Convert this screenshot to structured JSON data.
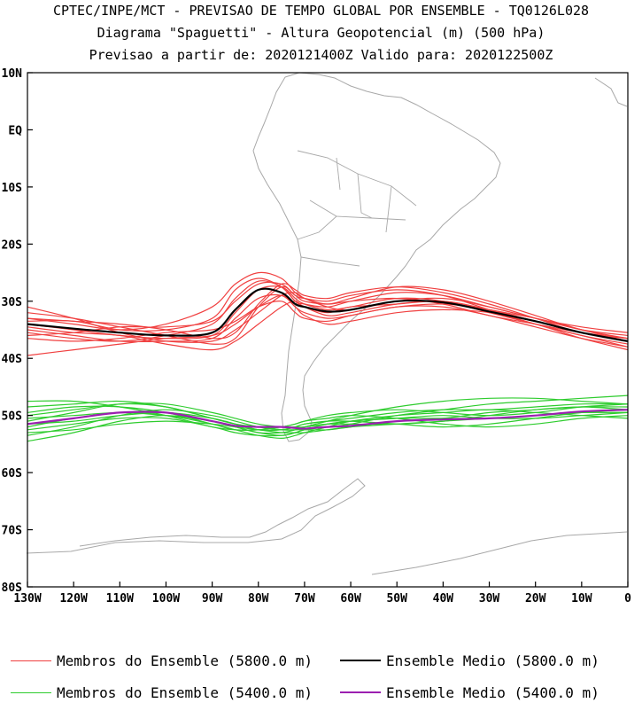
{
  "title": {
    "line1": "CPTEC/INPE/MCT - PREVISAO DE TEMPO GLOBAL POR ENSEMBLE - TQ0126L028",
    "line2": "Diagrama \"Spaguetti\" - Altura Geopotencial (m) (500 hPa)",
    "line3": "Previsao a partir de: 2020121400Z  Valido para: 2020122500Z"
  },
  "legend": [
    {
      "label": "Membros do Ensemble (5800.0 m)",
      "color": "#f04040",
      "weight": "thin"
    },
    {
      "label": "Ensemble Medio (5800.0 m)",
      "color": "#000000",
      "weight": "thick"
    },
    {
      "label": "Membros do Ensemble (5400.0 m)",
      "color": "#2ecc2e",
      "weight": "thin"
    },
    {
      "label": "Ensemble Medio (5400.0 m)",
      "color": "#9b1fb0",
      "weight": "thick"
    }
  ],
  "chart_data": {
    "type": "line",
    "xlim": [
      -130,
      0
    ],
    "ylim": [
      -80,
      10
    ],
    "x_ticks": [
      -130,
      -120,
      -110,
      -100,
      -90,
      -80,
      -70,
      -60,
      -50,
      -40,
      -30,
      -20,
      -10,
      0
    ],
    "x_tick_labels": [
      "130W",
      "120W",
      "110W",
      "100W",
      "90W",
      "80W",
      "70W",
      "60W",
      "50W",
      "40W",
      "30W",
      "20W",
      "10W",
      "0"
    ],
    "y_ticks": [
      10,
      0,
      -10,
      -20,
      -30,
      -40,
      -50,
      -60,
      -70,
      -80
    ],
    "y_tick_labels": [
      "10N",
      "EQ",
      "10S",
      "20S",
      "30S",
      "40S",
      "50S",
      "60S",
      "70S",
      "80S"
    ],
    "grid": false,
    "map_background": "South America coastline and country borders (gray)",
    "colors": {
      "map": "#a8a8a8",
      "members_5800": "#f04040",
      "mean_5800": "#000000",
      "members_5400": "#2ecc2e",
      "mean_5400": "#9b1fb0"
    },
    "x": [
      -130,
      -120,
      -110,
      -100,
      -90,
      -85,
      -80,
      -75,
      -72,
      -70,
      -65,
      -60,
      -50,
      -40,
      -30,
      -20,
      -10,
      0
    ],
    "series": [
      {
        "name": "Ensemble Medio (5800.0 m)",
        "kind": "mean",
        "color": "#000000",
        "values": [
          -34.0,
          -34.8,
          -35.5,
          -36.0,
          -35.5,
          -31.5,
          -28.0,
          -28.5,
          -30.5,
          -31.0,
          -31.8,
          -31.5,
          -30.0,
          -30.2,
          -31.8,
          -33.5,
          -35.5,
          -37.0
        ]
      },
      {
        "name": "Ensemble Medio (5400.0 m)",
        "kind": "mean",
        "color": "#9b1fb0",
        "values": [
          -51.5,
          -50.5,
          -49.5,
          -49.5,
          -51.0,
          -51.8,
          -52.0,
          -52.0,
          -52.2,
          -52.3,
          -52.0,
          -51.8,
          -51.0,
          -50.7,
          -50.5,
          -50.0,
          -49.3,
          -49.0
        ]
      },
      {
        "name": "Membros do Ensemble (5800.0 m)",
        "kind": "member",
        "color": "#f04040",
        "values": [
          -33.5,
          -33.5,
          -35.0,
          -35.0,
          -33.0,
          -28.0,
          -26.0,
          -27.5,
          -30.0,
          -30.5,
          -31.0,
          -30.0,
          -28.5,
          -29.0,
          -31.0,
          -33.0,
          -35.0,
          -36.0
        ]
      },
      {
        "name": "",
        "kind": "member",
        "color": "#f04040",
        "values": [
          -35.0,
          -36.0,
          -37.0,
          -37.0,
          -36.5,
          -33.0,
          -29.5,
          -29.0,
          -31.0,
          -32.0,
          -33.0,
          -32.5,
          -31.0,
          -31.0,
          -32.5,
          -34.5,
          -36.5,
          -38.0
        ]
      },
      {
        "name": "",
        "kind": "member",
        "color": "#f04040",
        "values": [
          -32.0,
          -33.0,
          -34.5,
          -36.0,
          -37.5,
          -36.5,
          -31.0,
          -27.5,
          -29.0,
          -30.0,
          -30.5,
          -30.0,
          -29.5,
          -30.5,
          -32.5,
          -34.0,
          -35.5,
          -36.5
        ]
      },
      {
        "name": "",
        "kind": "member",
        "color": "#f04040",
        "values": [
          -36.0,
          -35.5,
          -34.5,
          -34.5,
          -33.5,
          -30.0,
          -27.0,
          -27.0,
          -29.0,
          -29.5,
          -30.0,
          -29.0,
          -28.0,
          -29.0,
          -31.5,
          -34.0,
          -36.0,
          -37.5
        ]
      },
      {
        "name": "",
        "kind": "member",
        "color": "#f04040",
        "values": [
          -31.0,
          -33.0,
          -35.5,
          -37.0,
          -37.0,
          -35.0,
          -32.0,
          -29.0,
          -28.5,
          -29.5,
          -31.0,
          -31.5,
          -30.0,
          -29.5,
          -31.0,
          -33.0,
          -34.5,
          -35.5
        ]
      },
      {
        "name": "",
        "kind": "member",
        "color": "#f04040",
        "values": [
          -39.5,
          -38.5,
          -37.5,
          -36.5,
          -36.0,
          -34.0,
          -31.0,
          -29.0,
          -31.0,
          -32.5,
          -34.0,
          -33.5,
          -32.0,
          -31.5,
          -32.0,
          -34.0,
          -36.5,
          -38.5
        ]
      },
      {
        "name": "",
        "kind": "member",
        "color": "#f04040",
        "values": [
          -33.0,
          -34.0,
          -35.0,
          -34.0,
          -31.0,
          -27.0,
          -25.0,
          -26.0,
          -28.5,
          -29.5,
          -30.5,
          -29.5,
          -27.5,
          -28.0,
          -30.0,
          -32.5,
          -35.0,
          -36.5
        ]
      },
      {
        "name": "",
        "kind": "member",
        "color": "#f04040",
        "values": [
          -34.5,
          -35.5,
          -36.0,
          -37.5,
          -38.5,
          -37.0,
          -34.0,
          -31.0,
          -30.0,
          -31.0,
          -32.0,
          -31.0,
          -30.5,
          -30.0,
          -31.5,
          -33.5,
          -35.5,
          -37.0
        ]
      },
      {
        "name": "",
        "kind": "member",
        "color": "#f04040",
        "values": [
          -35.5,
          -36.5,
          -37.0,
          -36.0,
          -34.0,
          -29.5,
          -26.5,
          -27.5,
          -30.0,
          -31.0,
          -32.5,
          -32.0,
          -30.5,
          -30.0,
          -31.5,
          -33.0,
          -35.0,
          -37.0
        ]
      },
      {
        "name": "",
        "kind": "member",
        "color": "#f04040",
        "values": [
          -33.0,
          -33.5,
          -34.0,
          -35.0,
          -36.5,
          -35.5,
          -30.5,
          -27.0,
          -28.0,
          -29.0,
          -29.5,
          -28.5,
          -27.5,
          -28.5,
          -30.5,
          -33.0,
          -35.5,
          -36.5
        ]
      },
      {
        "name": "",
        "kind": "member",
        "color": "#f04040",
        "values": [
          -34.0,
          -35.0,
          -36.0,
          -36.5,
          -36.0,
          -32.0,
          -28.0,
          -27.5,
          -29.5,
          -30.5,
          -31.5,
          -31.0,
          -29.5,
          -30.0,
          -32.0,
          -34.0,
          -36.0,
          -38.0
        ]
      },
      {
        "name": "",
        "kind": "member",
        "color": "#f04040",
        "values": [
          -36.5,
          -37.0,
          -36.5,
          -35.5,
          -35.0,
          -33.5,
          -31.0,
          -30.0,
          -32.0,
          -33.0,
          -33.5,
          -32.5,
          -31.0,
          -30.5,
          -31.5,
          -33.5,
          -35.5,
          -36.5
        ]
      },
      {
        "name": "Membros do Ensemble (5400.0 m)",
        "kind": "member",
        "color": "#2ecc2e",
        "values": [
          -51.0,
          -49.5,
          -48.0,
          -48.5,
          -50.5,
          -51.5,
          -52.5,
          -52.5,
          -52.0,
          -51.5,
          -51.0,
          -50.5,
          -49.5,
          -49.0,
          -49.0,
          -48.5,
          -48.0,
          -48.0
        ]
      },
      {
        "name": "",
        "kind": "member",
        "color": "#2ecc2e",
        "values": [
          -52.5,
          -51.5,
          -50.5,
          -50.5,
          -52.0,
          -53.0,
          -53.5,
          -53.5,
          -53.0,
          -52.5,
          -51.5,
          -51.0,
          -50.5,
          -50.0,
          -50.5,
          -50.5,
          -50.0,
          -49.5
        ]
      },
      {
        "name": "",
        "kind": "member",
        "color": "#2ecc2e",
        "values": [
          -54.5,
          -53.0,
          -51.0,
          -50.0,
          -51.0,
          -52.0,
          -53.0,
          -53.5,
          -53.0,
          -52.5,
          -52.0,
          -51.5,
          -50.0,
          -49.0,
          -48.0,
          -47.5,
          -47.0,
          -46.5
        ]
      },
      {
        "name": "",
        "kind": "member",
        "color": "#2ecc2e",
        "values": [
          -49.5,
          -48.5,
          -48.5,
          -49.5,
          -51.5,
          -52.5,
          -52.5,
          -52.0,
          -51.5,
          -51.0,
          -50.5,
          -50.0,
          -50.5,
          -51.5,
          -52.0,
          -51.5,
          -50.5,
          -50.0
        ]
      },
      {
        "name": "",
        "kind": "member",
        "color": "#2ecc2e",
        "values": [
          -53.5,
          -52.0,
          -50.0,
          -49.0,
          -50.0,
          -51.0,
          -52.0,
          -52.5,
          -52.5,
          -52.5,
          -52.5,
          -52.0,
          -51.0,
          -50.5,
          -49.5,
          -49.0,
          -48.5,
          -48.5
        ]
      },
      {
        "name": "",
        "kind": "member",
        "color": "#2ecc2e",
        "values": [
          -50.5,
          -50.0,
          -49.5,
          -50.0,
          -51.0,
          -52.0,
          -53.0,
          -53.0,
          -52.5,
          -52.0,
          -51.5,
          -51.5,
          -51.5,
          -51.0,
          -50.0,
          -49.0,
          -48.5,
          -49.0
        ]
      },
      {
        "name": "",
        "kind": "member",
        "color": "#2ecc2e",
        "values": [
          -47.5,
          -47.5,
          -48.5,
          -50.0,
          -52.0,
          -52.5,
          -52.5,
          -52.0,
          -51.5,
          -51.0,
          -50.0,
          -49.5,
          -49.0,
          -49.5,
          -50.0,
          -49.5,
          -48.5,
          -48.0
        ]
      },
      {
        "name": "",
        "kind": "member",
        "color": "#2ecc2e",
        "values": [
          -52.0,
          -50.5,
          -49.5,
          -50.0,
          -51.5,
          -52.5,
          -53.5,
          -54.0,
          -53.5,
          -53.0,
          -52.0,
          -51.0,
          -50.0,
          -49.5,
          -49.0,
          -49.5,
          -50.0,
          -50.5
        ]
      },
      {
        "name": "",
        "kind": "member",
        "color": "#2ecc2e",
        "values": [
          -50.0,
          -49.0,
          -48.0,
          -48.0,
          -49.5,
          -50.5,
          -51.5,
          -52.0,
          -52.0,
          -52.0,
          -51.5,
          -51.0,
          -50.5,
          -50.5,
          -50.5,
          -50.0,
          -49.5,
          -49.5
        ]
      },
      {
        "name": "",
        "kind": "member",
        "color": "#2ecc2e",
        "values": [
          -53.0,
          -52.5,
          -51.5,
          -51.0,
          -51.5,
          -52.0,
          -52.5,
          -53.0,
          -53.0,
          -53.0,
          -52.5,
          -52.0,
          -51.5,
          -51.0,
          -50.5,
          -50.0,
          -49.5,
          -49.5
        ]
      },
      {
        "name": "",
        "kind": "member",
        "color": "#2ecc2e",
        "values": [
          -48.5,
          -48.0,
          -47.5,
          -48.5,
          -50.5,
          -51.5,
          -52.0,
          -52.5,
          -52.5,
          -52.0,
          -51.0,
          -50.0,
          -48.5,
          -47.5,
          -47.0,
          -47.0,
          -47.5,
          -48.0
        ]
      },
      {
        "name": "",
        "kind": "member",
        "color": "#2ecc2e",
        "values": [
          -51.5,
          -51.0,
          -50.0,
          -49.5,
          -50.5,
          -51.5,
          -52.5,
          -52.5,
          -52.0,
          -51.5,
          -51.0,
          -51.0,
          -51.5,
          -52.0,
          -51.5,
          -50.5,
          -49.5,
          -49.0
        ]
      }
    ]
  }
}
